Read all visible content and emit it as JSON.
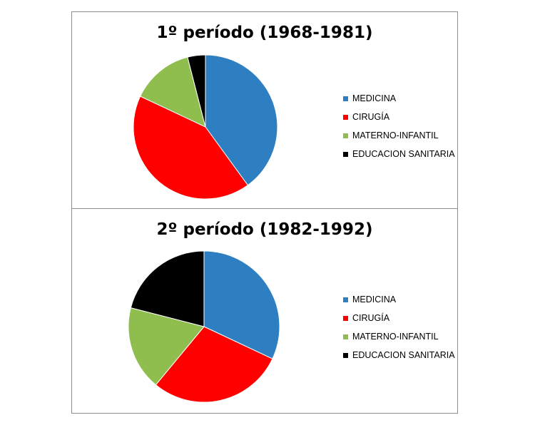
{
  "chart_data": [
    {
      "type": "pie",
      "title": "1º período (1968-1981)",
      "slices": [
        {
          "label": "MEDICINA",
          "value": 40,
          "color": "#2e7fc2"
        },
        {
          "label": "CIRUGÍA",
          "value": 42,
          "color": "#ff0000"
        },
        {
          "label": "MATERNO-INFANTIL",
          "value": 14,
          "color": "#8fbe4f"
        },
        {
          "label": "EDUCACION SANITARIA",
          "value": 4,
          "color": "#000000"
        }
      ],
      "start_angle_deg": 0,
      "direction": "clockwise",
      "legend_position": "right"
    },
    {
      "type": "pie",
      "title": "2º período (1982-1992)",
      "slices": [
        {
          "label": "MEDICINA",
          "value": 32,
          "color": "#2e7fc2"
        },
        {
          "label": "CIRUGÍA",
          "value": 29,
          "color": "#ff0000"
        },
        {
          "label": "MATERNO-INFANTIL",
          "value": 18,
          "color": "#8fbe4f"
        },
        {
          "label": "EDUCACION SANITARIA",
          "value": 21,
          "color": "#000000"
        }
      ],
      "start_angle_deg": 0,
      "direction": "clockwise",
      "legend_position": "right"
    }
  ]
}
